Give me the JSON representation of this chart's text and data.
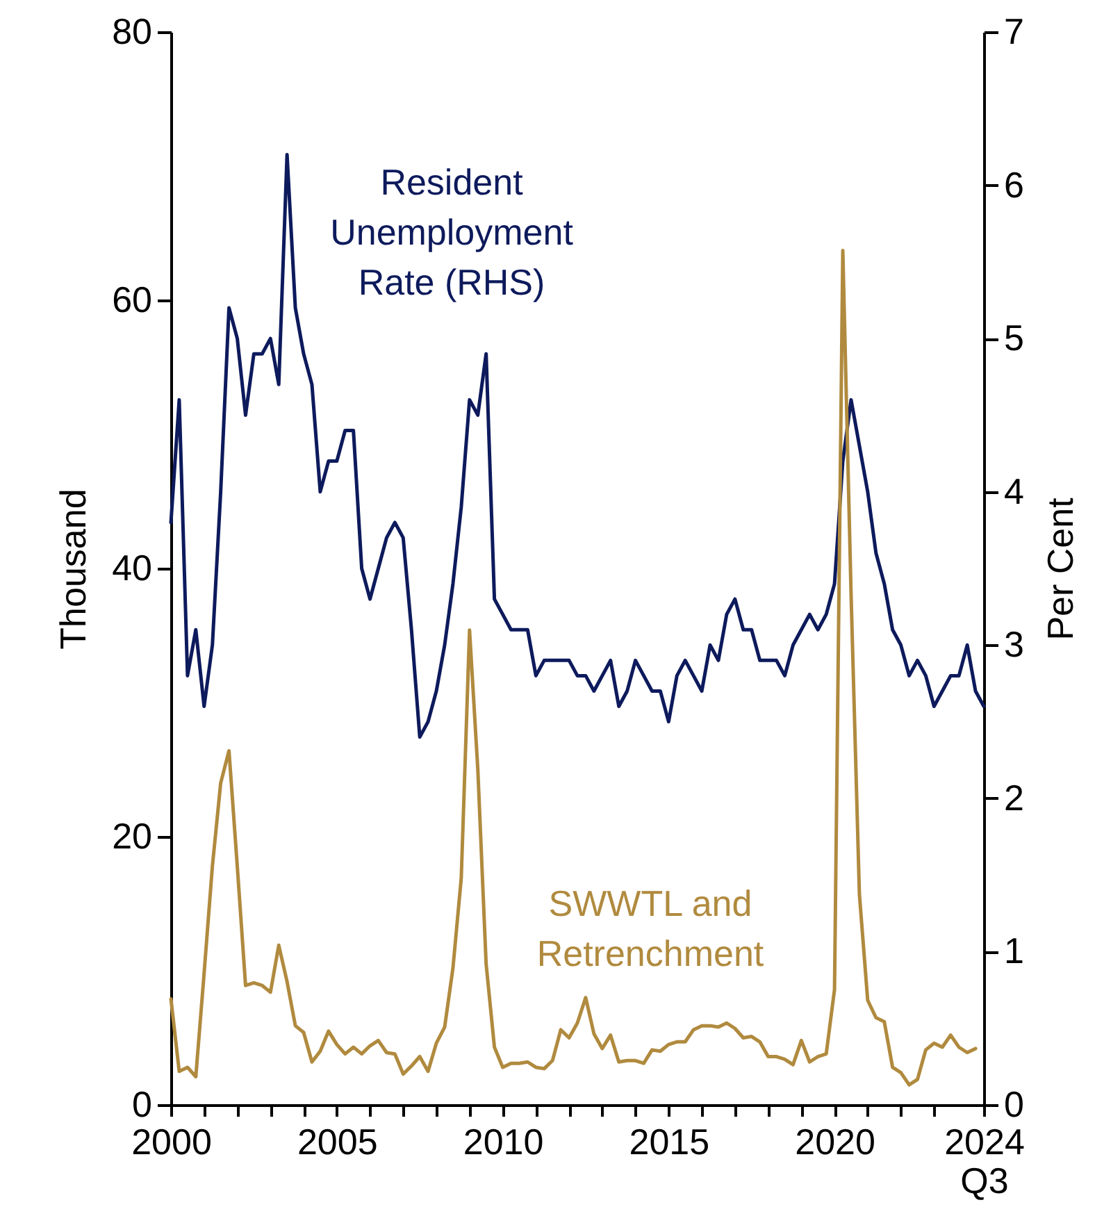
{
  "chart_data": {
    "type": "line",
    "ylabel": "Thousand",
    "y2label": "Per Cent",
    "x": [
      2000,
      2000.25,
      2000.5,
      2000.75,
      2001,
      2001.25,
      2001.5,
      2001.75,
      2002,
      2002.25,
      2002.5,
      2002.75,
      2003,
      2003.25,
      2003.5,
      2003.75,
      2004,
      2004.25,
      2004.5,
      2004.75,
      2005,
      2005.25,
      2005.5,
      2005.75,
      2006,
      2006.25,
      2006.5,
      2006.75,
      2007,
      2007.25,
      2007.5,
      2007.75,
      2008,
      2008.25,
      2008.5,
      2008.75,
      2009,
      2009.25,
      2009.5,
      2009.75,
      2010,
      2010.25,
      2010.5,
      2010.75,
      2011,
      2011.25,
      2011.5,
      2011.75,
      2012,
      2012.25,
      2012.5,
      2012.75,
      2013,
      2013.25,
      2013.5,
      2013.75,
      2014,
      2014.25,
      2014.5,
      2014.75,
      2015,
      2015.25,
      2015.5,
      2015.75,
      2016,
      2016.25,
      2016.5,
      2016.75,
      2017,
      2017.25,
      2017.5,
      2017.75,
      2018,
      2018.25,
      2018.5,
      2018.75,
      2019,
      2019.25,
      2019.5,
      2019.75,
      2020,
      2020.25,
      2020.5,
      2020.75,
      2021,
      2021.25,
      2021.5,
      2021.75,
      2022,
      2022.25,
      2022.5,
      2022.75,
      2023,
      2023.25,
      2023.5,
      2023.75,
      2024,
      2024.25,
      2024.5
    ],
    "series": [
      {
        "name": "Resident Unemployment Rate (RHS)",
        "color": "#0d1a5c",
        "axis": "y2",
        "values": [
          3.8,
          4.6,
          2.8,
          3.1,
          2.6,
          3.0,
          4.0,
          5.2,
          5.0,
          4.5,
          4.9,
          4.9,
          5.0,
          4.7,
          6.2,
          5.2,
          4.9,
          4.7,
          4.0,
          4.2,
          4.2,
          4.4,
          4.4,
          3.5,
          3.3,
          3.5,
          3.7,
          3.8,
          3.7,
          3.1,
          2.4,
          2.5,
          2.7,
          3.0,
          3.4,
          3.9,
          4.6,
          4.5,
          4.9,
          3.3,
          3.2,
          3.1,
          3.1,
          3.1,
          2.8,
          2.9,
          2.9,
          2.9,
          2.9,
          2.8,
          2.8,
          2.7,
          2.8,
          2.9,
          2.6,
          2.7,
          2.9,
          2.8,
          2.7,
          2.7,
          2.5,
          2.8,
          2.9,
          2.8,
          2.7,
          3.0,
          2.9,
          3.2,
          3.3,
          3.1,
          3.1,
          2.9,
          2.9,
          2.9,
          2.8,
          3.0,
          3.1,
          3.2,
          3.1,
          3.2,
          3.4,
          4.2,
          4.6,
          4.3,
          4.0,
          3.6,
          3.4,
          3.1,
          3.0,
          2.8,
          2.9,
          2.8,
          2.6,
          2.7,
          2.8,
          2.8,
          3.0,
          2.7,
          2.6
        ]
      },
      {
        "name": "SWWTL and Retrenchment",
        "color": "#b08a3e",
        "values": [
          7.9,
          2.5,
          2.8,
          2.1,
          9.8,
          17.8,
          24.0,
          26.4,
          17.8,
          8.9,
          9.1,
          8.9,
          8.4,
          11.9,
          9.2,
          5.9,
          5.4,
          3.2,
          4.0,
          5.5,
          4.5,
          3.8,
          4.3,
          3.8,
          4.4,
          4.8,
          3.9,
          3.8,
          2.3,
          2.9,
          3.6,
          2.5,
          4.6,
          5.8,
          10.2,
          16.9,
          35.4,
          25.0,
          10.5,
          4.3,
          2.8,
          3.1,
          3.1,
          3.2,
          2.8,
          2.7,
          3.3,
          5.6,
          5.0,
          6.1,
          8.0,
          5.3,
          4.2,
          5.2,
          3.2,
          3.3,
          3.3,
          3.1,
          4.1,
          4.0,
          4.5,
          4.7,
          4.7,
          5.6,
          5.9,
          5.9,
          5.8,
          6.1,
          5.7,
          5.0,
          5.1,
          4.7,
          3.6,
          3.6,
          3.4,
          3.0,
          4.8,
          3.2,
          3.6,
          3.8,
          8.6,
          63.7,
          38.0,
          15.7,
          7.8,
          6.5,
          6.2,
          2.8,
          2.4,
          1.5,
          1.9,
          4.1,
          4.6,
          4.3,
          5.2,
          4.3,
          3.9,
          4.2,
          null
        ]
      }
    ],
    "xlim": [
      2000,
      2024.5
    ],
    "xticks": [
      2000,
      {
        "value": 2001,
        "label": null
      },
      {
        "value": 2002,
        "label": null
      },
      {
        "value": 2003,
        "label": null
      },
      {
        "value": 2004,
        "label": null
      },
      2005,
      {
        "value": 2006,
        "label": null
      },
      {
        "value": 2007,
        "label": null
      },
      {
        "value": 2008,
        "label": null
      },
      {
        "value": 2009,
        "label": null
      },
      2010,
      {
        "value": 2011,
        "label": null
      },
      {
        "value": 2012,
        "label": null
      },
      {
        "value": 2013,
        "label": null
      },
      {
        "value": 2014,
        "label": null
      },
      2015,
      {
        "value": 2016,
        "label": null
      },
      {
        "value": 2017,
        "label": null
      },
      {
        "value": 2018,
        "label": null
      },
      {
        "value": 2019,
        "label": null
      },
      2020,
      {
        "value": 2021,
        "label": null
      },
      {
        "value": 2022,
        "label": null
      },
      {
        "value": 2023,
        "label": null
      },
      {
        "value": 2024.5,
        "label": "2024\nQ3"
      }
    ],
    "ylim": [
      0,
      80
    ],
    "yticks": [
      0,
      20,
      40,
      60,
      80
    ],
    "y2lim": [
      0,
      7
    ],
    "y2ticks": [
      0,
      1,
      2,
      3,
      4,
      5,
      6,
      7
    ],
    "grid": false,
    "legend": false,
    "line_style": "solid",
    "marker": "none"
  }
}
